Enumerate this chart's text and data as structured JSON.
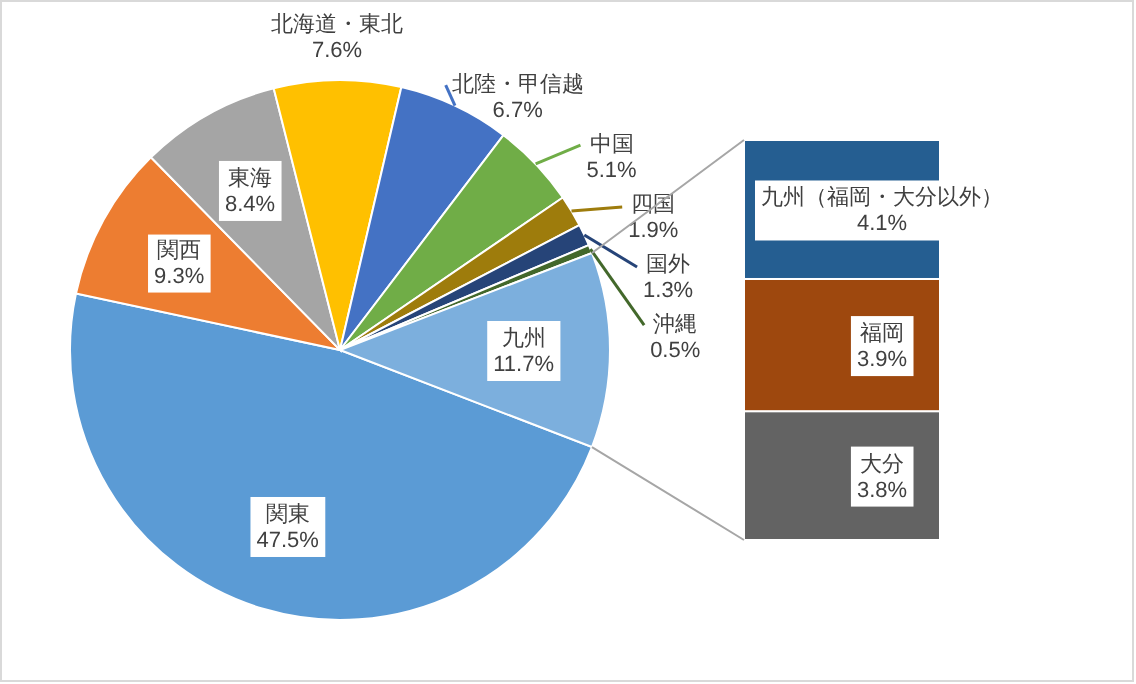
{
  "chart_data": [
    {
      "type": "pie",
      "categories": [
        "関東",
        "関西",
        "東海",
        "北海道・東北",
        "北陸・甲信越",
        "中国",
        "四国",
        "国外",
        "沖縄",
        "九州"
      ],
      "values": [
        47.5,
        9.3,
        8.4,
        7.6,
        6.7,
        5.1,
        1.9,
        1.3,
        0.5,
        11.7
      ],
      "value_labels": [
        "47.5%",
        "9.3%",
        "8.4%",
        "7.6%",
        "6.7%",
        "5.1%",
        "1.9%",
        "1.3%",
        "0.5%",
        "11.7%"
      ],
      "colors": [
        "#5b9bd5",
        "#ed7d31",
        "#a5a5a5",
        "#ffc000",
        "#4472c4",
        "#70ad47",
        "#9e7c0c",
        "#264478",
        "#43682b",
        "#7cafdd"
      ]
    },
    {
      "type": "bar",
      "stacked": true,
      "categories": [
        null
      ],
      "series": [
        {
          "name": "大分",
          "color": "#636363",
          "values": [
            3.8
          ],
          "value_labels": [
            "3.8%"
          ]
        },
        {
          "name": "福岡",
          "color": "#9e480e",
          "values": [
            3.9
          ],
          "value_labels": [
            "3.9%"
          ]
        },
        {
          "name": "九州（福岡・大分以外）",
          "color": "#255e91",
          "values": [
            4.1
          ],
          "value_labels": [
            "4.1%"
          ]
        }
      ]
    }
  ]
}
